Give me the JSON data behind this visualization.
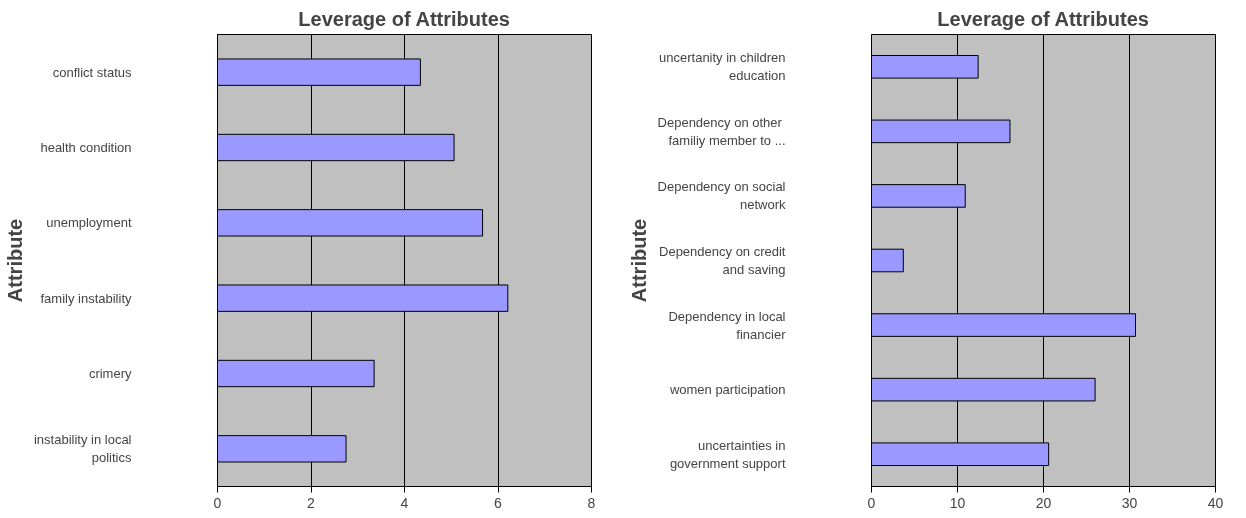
{
  "chart_data": [
    {
      "type": "bar",
      "orientation": "horizontal",
      "title": "Leverage of Attributes",
      "ylabel": "Attribute",
      "categories": [
        "conflict status",
        "health condition",
        "unemployment",
        "family instability",
        "crimery",
        "instability in local\npolitics"
      ],
      "values": [
        4.34,
        5.06,
        5.67,
        6.21,
        3.35,
        2.75
      ],
      "color": "#9999ff",
      "xlim": [
        0,
        8
      ],
      "xticks": [
        0,
        2,
        4,
        6,
        8
      ],
      "grid": "x"
    },
    {
      "type": "bar",
      "orientation": "horizontal",
      "title": "Leverage of Attributes",
      "ylabel": "Attribute",
      "categories": [
        "uncertanity in children\neducation",
        "Dependency on  other\nfamiliy member to ...",
        "Dependency on social\nnetwork",
        "Dependency on credit\nand saving",
        "Dependency in local\nfinancier",
        "women participation",
        "uncertainties in\ngovernment support"
      ],
      "values": [
        12.4,
        16.1,
        10.9,
        3.7,
        30.7,
        26.0,
        20.6
      ],
      "color": "#9999ff",
      "xlim": [
        0,
        40
      ],
      "xticks": [
        0,
        10,
        20,
        30,
        40
      ],
      "grid": "x"
    }
  ]
}
